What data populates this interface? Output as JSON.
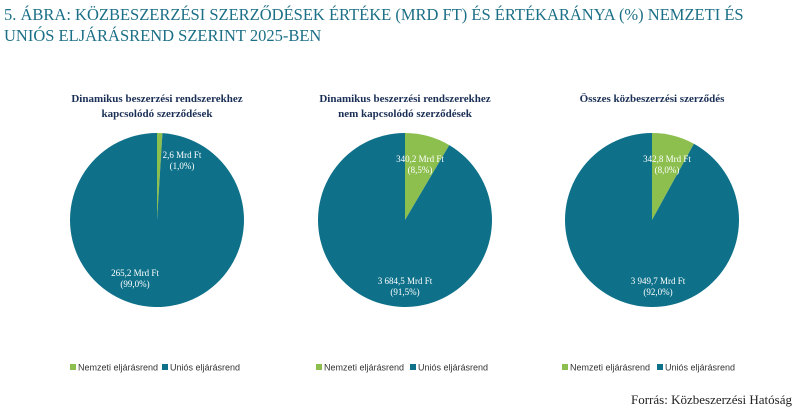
{
  "title": "5. ÁBRA: KÖZBESZERZÉSI SZERZŐDÉSEK ÉRTÉKE (MRD FT) ÉS ÉRTÉKARÁNYA (%) NEMZETI ÉS UNIÓS ELJÁRÁSREND SZERINT 2025-BEN",
  "source": "Forrás: Közbeszerzési Hatóság",
  "chart_data": [
    {
      "type": "pie",
      "title": "Dinamikus beszerzési rendszerekhez\nkapcsolódó szerződések",
      "categories": [
        "Nemzeti eljárásrend",
        "Uniós eljárásrend"
      ],
      "colors": [
        "#8dbf4f",
        "#0e7189"
      ],
      "values": [
        1.0,
        99.0
      ],
      "value_labels": [
        "(1,0%)",
        "(99,0%)"
      ],
      "amount_labels": [
        "2,6 Mrd Ft",
        "265,2 Mrd Ft"
      ]
    },
    {
      "type": "pie",
      "title": "Dinamikus beszerzési rendszerekhez\nnem kapcsolódó szerződések",
      "categories": [
        "Nemzeti eljárásrend",
        "Uniós eljárásrend"
      ],
      "colors": [
        "#8dbf4f",
        "#0e7189"
      ],
      "values": [
        8.5,
        91.5
      ],
      "value_labels": [
        "(8,5%)",
        "(91,5%)"
      ],
      "amount_labels": [
        "340,2 Mrd Ft",
        "3 684,5 Mrd Ft"
      ]
    },
    {
      "type": "pie",
      "title": "Összes közbeszerzési szerződés",
      "categories": [
        "Nemzeti eljárásrend",
        "Uniós eljárásrend"
      ],
      "colors": [
        "#8dbf4f",
        "#0e7189"
      ],
      "values": [
        8.0,
        92.0
      ],
      "value_labels": [
        "(8,0%)",
        "(92,0%)"
      ],
      "amount_labels": [
        "342,8 Mrd Ft",
        "3 949,7 Mrd Ft"
      ]
    }
  ]
}
